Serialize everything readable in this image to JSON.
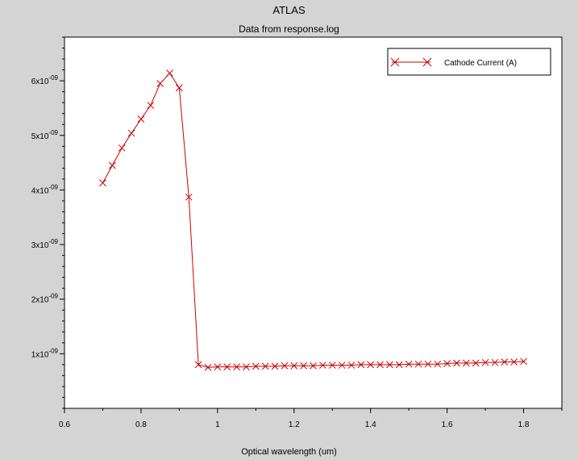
{
  "app_title": "ATLAS",
  "chart_data": {
    "type": "line",
    "title": "Data from response.log",
    "xlabel": "Optical wavelength (um)",
    "ylabel": "",
    "xlim": [
      0.6,
      1.9
    ],
    "ylim": [
      0,
      6.8e-09
    ],
    "xticks": [
      0.6,
      0.8,
      1.0,
      1.2,
      1.4,
      1.6,
      1.8
    ],
    "xtick_labels": [
      "0.6",
      "0.8",
      "1",
      "1.2",
      "1.4",
      "1.6",
      "1.8"
    ],
    "yticks": [
      1e-09,
      2e-09,
      3e-09,
      4e-09,
      5e-09,
      6e-09
    ],
    "ytick_labels": [
      {
        "mantissa": "1x10",
        "exp": "-09"
      },
      {
        "mantissa": "2x10",
        "exp": "-09"
      },
      {
        "mantissa": "3x10",
        "exp": "-09"
      },
      {
        "mantissa": "4x10",
        "exp": "-09"
      },
      {
        "mantissa": "5x10",
        "exp": "-09"
      },
      {
        "mantissa": "6x10",
        "exp": "-09"
      }
    ],
    "grid": false,
    "legend_position": "top-right",
    "series": [
      {
        "name": "Cathode Current (A)",
        "color": "#cc0000",
        "marker": "x",
        "x": [
          0.7,
          0.725,
          0.75,
          0.775,
          0.8,
          0.825,
          0.85,
          0.875,
          0.9,
          0.925,
          0.95,
          0.975,
          1.0,
          1.025,
          1.05,
          1.075,
          1.1,
          1.125,
          1.15,
          1.175,
          1.2,
          1.225,
          1.25,
          1.275,
          1.3,
          1.325,
          1.35,
          1.375,
          1.4,
          1.425,
          1.45,
          1.475,
          1.5,
          1.525,
          1.55,
          1.575,
          1.6,
          1.625,
          1.65,
          1.675,
          1.7,
          1.725,
          1.75,
          1.775,
          1.8
        ],
        "y": [
          4.13e-09,
          4.45e-09,
          4.77e-09,
          5.04e-09,
          5.3e-09,
          5.55e-09,
          5.95e-09,
          6.14e-09,
          5.87e-09,
          3.87e-09,
          8e-10,
          7.5e-10,
          7.6e-10,
          7.6e-10,
          7.6e-10,
          7.6e-10,
          7.7e-10,
          7.7e-10,
          7.7e-10,
          7.8e-10,
          7.8e-10,
          7.8e-10,
          7.8e-10,
          7.9e-10,
          7.9e-10,
          7.9e-10,
          7.9e-10,
          8e-10,
          8e-10,
          8e-10,
          8e-10,
          8e-10,
          8.1e-10,
          8.1e-10,
          8.1e-10,
          8.1e-10,
          8.2e-10,
          8.3e-10,
          8.3e-10,
          8.3e-10,
          8.4e-10,
          8.4e-10,
          8.5e-10,
          8.5e-10,
          8.6e-10
        ]
      }
    ]
  }
}
